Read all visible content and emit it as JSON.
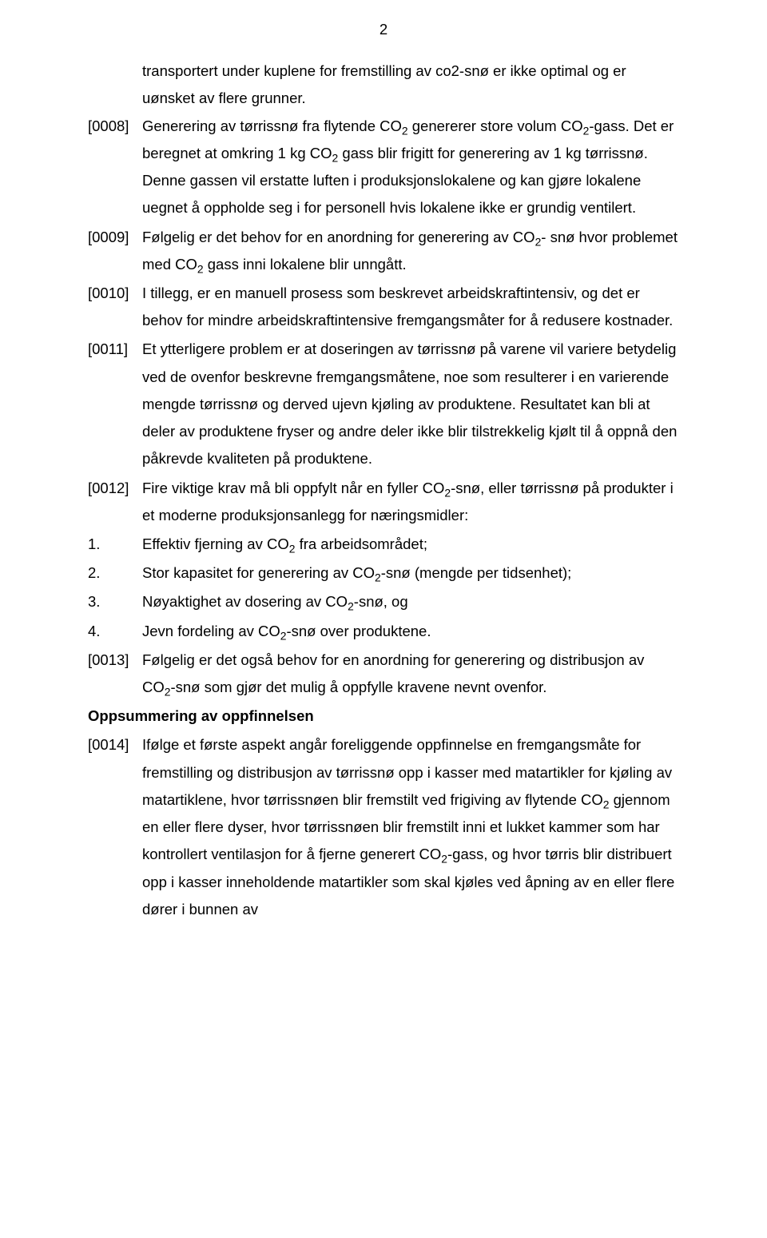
{
  "page": {
    "number": "2"
  },
  "paragraphs": {
    "cont0": "transportert under kuplene for fremstilling av co2-snø er ikke optimal og er uønsket av flere grunner.",
    "p0008_ref": "[0008]",
    "p0008": "Generering av tørrissnø fra flytende CO₂ genererer store volum CO₂-gass. Det er beregnet at omkring 1 kg CO₂ gass blir frigitt for generering av 1 kg tørrissnø. Denne gassen vil erstatte luften i produksjonslokalene og kan gjøre lokalene uegnet å oppholde seg i for personell hvis lokalene ikke er grundig ventilert.",
    "p0009_ref": "[0009]",
    "p0009": "Følgelig er det behov for en anordning for generering av CO₂- snø hvor problemet med CO₂ gass inni lokalene blir unngått.",
    "p0010_ref": "[0010]",
    "p0010": "I tillegg, er en manuell prosess som beskrevet arbeidskraftintensiv, og det er behov for mindre arbeidskraftintensive fremgangsmåter for å redusere kostnader.",
    "p0011_ref": "[0011]",
    "p0011": "Et ytterligere problem er at doseringen av tørrissnø på varene vil variere betydelig ved de ovenfor beskrevne fremgangsmåtene, noe som resulterer i en varierende mengde tørrissnø og derved ujevn kjøling av produktene. Resultatet kan bli at deler av produktene fryser og andre deler ikke blir tilstrekkelig kjølt til å oppnå den påkrevde kvaliteten på produktene.",
    "p0012_ref": "[0012]",
    "p0012": "Fire viktige krav må bli oppfylt når en fyller CO₂-snø, eller tørrissnø på produkter i et moderne produksjonsanlegg for næringsmidler:",
    "list1_num": "1.",
    "list1": "Effektiv fjerning av CO₂ fra arbeidsområdet;",
    "list2_num": "2.",
    "list2": "Stor kapasitet for generering av CO₂-snø (mengde per tidsenhet);",
    "list3_num": "3.",
    "list3": "Nøyaktighet av dosering av CO₂-snø, og",
    "list4_num": "4.",
    "list4": "Jevn fordeling av CO₂-snø over produktene.",
    "p0013_ref": "[0013]",
    "p0013": "Følgelig er det også behov for en anordning for generering og distribusjon av CO₂-snø som gjør det mulig å oppfylle kravene nevnt ovenfor.",
    "heading": "Oppsummering av oppfinnelsen",
    "p0014_ref": "[0014]",
    "p0014": "Ifølge et første aspekt angår foreliggende oppfinnelse en fremgangsmåte for fremstilling og distribusjon av tørrissnø opp i kasser med matartikler for kjøling av matartiklene, hvor tørrissnøen blir fremstilt ved frigiving av flytende CO₂ gjennom en eller flere dyser, hvor tørrissnøen blir fremstilt inni et lukket kammer som har kontrollert ventilasjon for å fjerne generert CO₂-gass, og hvor tørris blir distribuert opp i kasser inneholdende matartikler som skal kjøles ved åpning av en eller flere dører i bunnen av"
  },
  "style": {
    "background_color": "#ffffff",
    "text_color": "#000000",
    "font_family": "Arial",
    "font_size_pt": 14,
    "line_height": 1.85
  }
}
